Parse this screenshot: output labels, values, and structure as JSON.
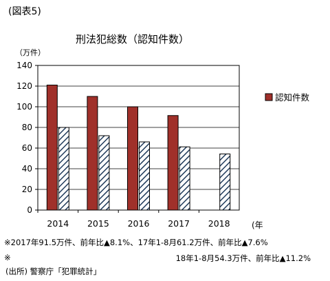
{
  "figure_label": "(図表5)",
  "notes": {
    "line1": "※2017年91.5万件、前年比▲8.1%、17年1-8月61.2万件、前年比▲7.6%",
    "line2_mark": "※",
    "line2": "18年1-8月54.3万件、前年比▲11.2%"
  },
  "source": "(出所) 警察庁「犯罪統計」",
  "colors": {
    "bar1": "#A0302A",
    "bar2_hatch": "#1F3A5A",
    "grid": "#000000"
  },
  "chart_data": {
    "type": "bar",
    "title": "刑法犯総数（認知件数）",
    "ylabel": "（万件）",
    "xlabel": "(年",
    "ylim": [
      0,
      140
    ],
    "yticks": [
      0,
      20,
      40,
      60,
      80,
      100,
      120,
      140
    ],
    "categories": [
      "2014",
      "2015",
      "2016",
      "2017",
      "2018"
    ],
    "series": [
      {
        "name": "認知件数",
        "values": [
          121,
          110,
          100,
          91.5,
          null
        ],
        "style": "solid"
      },
      {
        "name": "",
        "values": [
          80,
          72,
          66,
          61.2,
          54.3
        ],
        "style": "hatched"
      }
    ],
    "legend": "right",
    "grid": true
  }
}
